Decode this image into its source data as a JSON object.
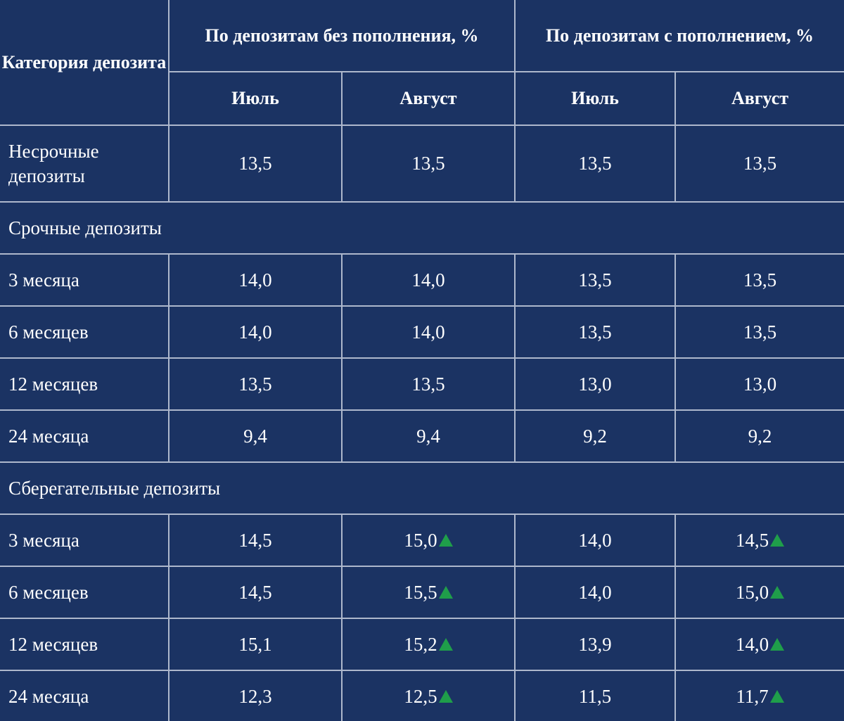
{
  "header": {
    "category": "Категория депозита",
    "group_no_topup": "По депозитам без пополнения, %",
    "group_topup": "По депозитам с пополнением, %",
    "months": [
      "Июль",
      "Август",
      "Июль",
      "Август"
    ]
  },
  "colors": {
    "background": "#1b3363",
    "grid": "#aeb8cc",
    "increase_marker": "#1f9e4a"
  },
  "rows": [
    {
      "category": "Несрочные депозиты",
      "values": [
        "13,5",
        "13,5",
        "13,5",
        "13,5"
      ],
      "up": [
        false,
        false,
        false,
        false
      ]
    },
    {
      "section": "Срочные депозиты"
    },
    {
      "category": "3 месяца",
      "values": [
        "14,0",
        "14,0",
        "13,5",
        "13,5"
      ],
      "up": [
        false,
        false,
        false,
        false
      ]
    },
    {
      "category": "6 месяцев",
      "values": [
        "14,0",
        "14,0",
        "13,5",
        "13,5"
      ],
      "up": [
        false,
        false,
        false,
        false
      ]
    },
    {
      "category": "12 месяцев",
      "values": [
        "13,5",
        "13,5",
        "13,0",
        "13,0"
      ],
      "up": [
        false,
        false,
        false,
        false
      ]
    },
    {
      "category": "24 месяца",
      "values": [
        "9,4",
        "9,4",
        "9,2",
        "9,2"
      ],
      "up": [
        false,
        false,
        false,
        false
      ]
    },
    {
      "section": "Сберегательные депозиты"
    },
    {
      "category": "3 месяца",
      "values": [
        "14,5",
        "15,0",
        "14,0",
        "14,5"
      ],
      "up": [
        false,
        true,
        false,
        true
      ]
    },
    {
      "category": "6 месяцев",
      "values": [
        "14,5",
        "15,5",
        "14,0",
        "15,0"
      ],
      "up": [
        false,
        true,
        false,
        true
      ]
    },
    {
      "category": "12 месяцев",
      "values": [
        "15,1",
        "15,2",
        "13,9",
        "14,0"
      ],
      "up": [
        false,
        true,
        false,
        true
      ]
    },
    {
      "category": "24 месяца",
      "values": [
        "12,3",
        "12,5",
        "11,5",
        "11,7"
      ],
      "up": [
        false,
        true,
        false,
        true
      ]
    }
  ]
}
